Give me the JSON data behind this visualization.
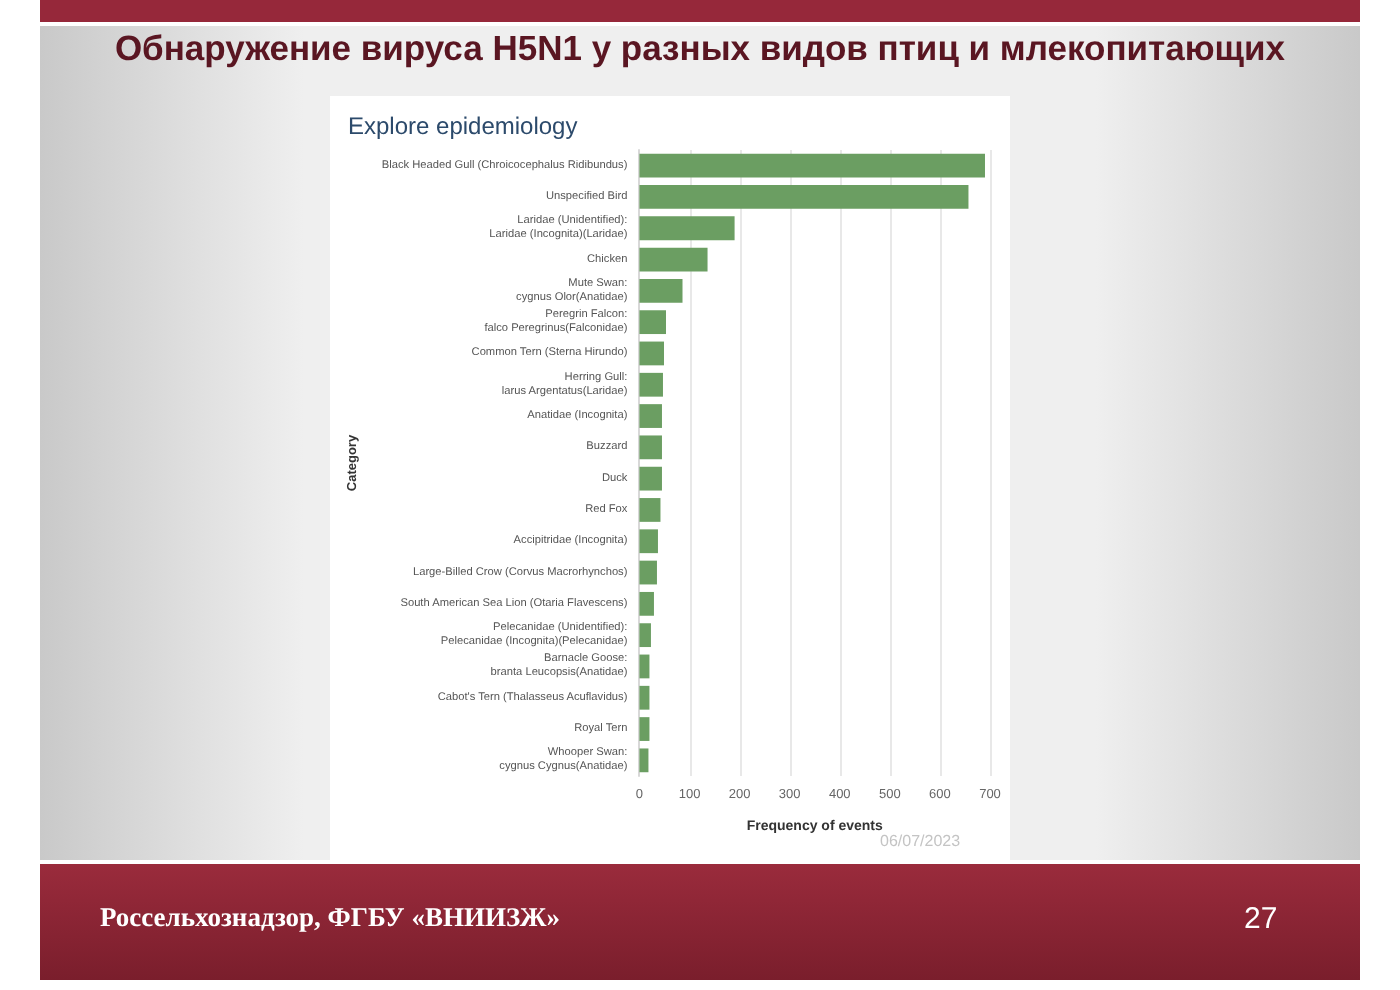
{
  "chart_data": {
    "type": "bar",
    "orientation": "horizontal",
    "title": "Обнаружение вируса H5N1 у разных видов птиц и млекопитающих",
    "subtitle": "Explore epidemiology",
    "xlabel": "Frequency of events",
    "ylabel": "Category",
    "categories": [
      "Black Headed Gull (Chroicocephalus Ridibundus)",
      "Unspecified Bird",
      "Laridae (Unidentified):\nLaridae (Incognita)(Laridae)",
      "Chicken",
      "Mute Swan:\ncygnus Olor(Anatidae)",
      "Peregrin Falcon:\nfalco Peregrinus(Falconidae)",
      "Common Tern (Sterna Hirundo)",
      "Herring Gull:\nlarus Argentatus(Laridae)",
      "Anatidae (Incognita)",
      "Buzzard",
      "Duck",
      "Red Fox",
      "Accipitridae (Incognita)",
      "Large-Billed Crow (Corvus Macrorhynchos)",
      "South American Sea Lion (Otaria Flavescens)",
      "Pelecanidae (Unidentified):\nPelecanidae (Incognita)(Pelecanidae)",
      "Barnacle Goose:\nbranta Leucopsis(Anatidae)",
      "Cabot's Tern (Thalasseus Acuflavidus)",
      "Royal Tern",
      "Whooper Swan:\ncygnus Cygnus(Anatidae)"
    ],
    "values": [
      690,
      657,
      190,
      136,
      86,
      53,
      49,
      47,
      45,
      45,
      45,
      42,
      37,
      35,
      29,
      23,
      20,
      20,
      20,
      18
    ],
    "color": "#6b9e62",
    "xlim": [
      0,
      700
    ],
    "xticks": [
      0,
      100,
      200,
      300,
      400,
      500,
      600,
      700
    ],
    "grid": "x",
    "annotations": [
      "Россельхознадзор, ФГБУ «ВНИИЗЖ»",
      "27",
      "06/07/2023"
    ]
  }
}
